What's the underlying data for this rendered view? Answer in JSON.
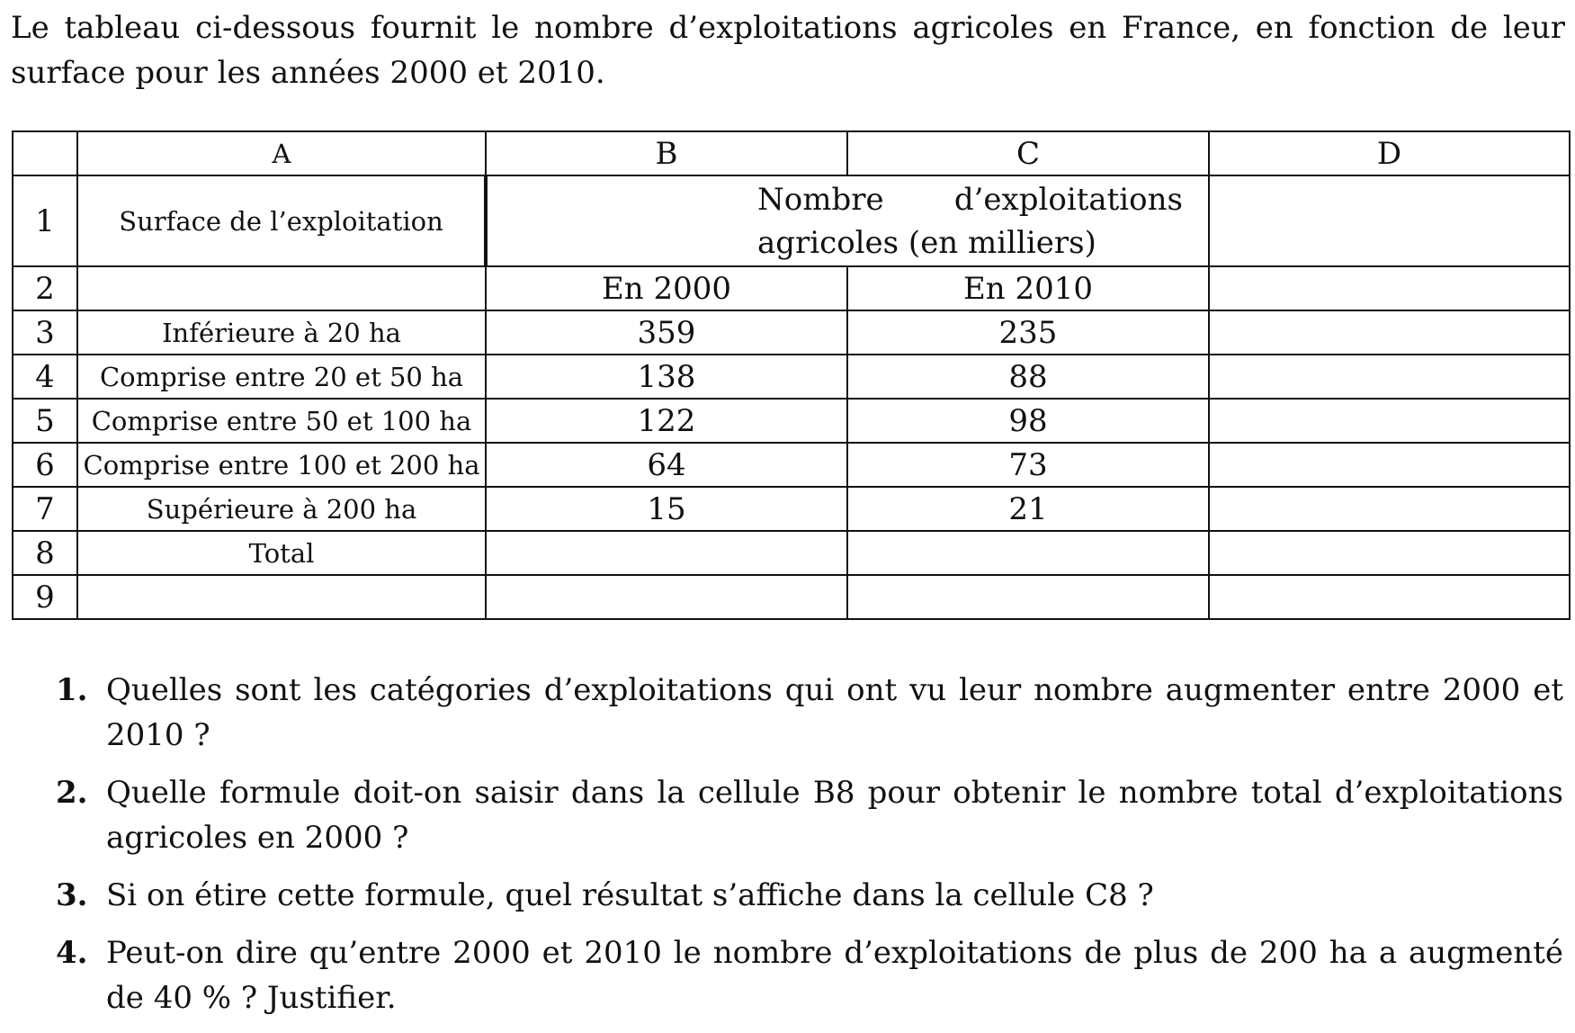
{
  "intro": "Le tableau ci-dessous fournit le nombre d’exploitations agricoles en France, en fonction de leur surface pour les années 2000 et 2010.",
  "table": {
    "column_headers": [
      "A",
      "B",
      "C",
      "D"
    ],
    "row1": {
      "num": "1",
      "a": "Surface de l’exploitation",
      "bc_line1": "Nombre d’exploitations",
      "bc_line2": "agricoles (en milliers)",
      "d": ""
    },
    "row2": {
      "num": "2",
      "a": "",
      "b": "En 2000",
      "c": "En 2010",
      "d": ""
    },
    "rows": [
      {
        "num": "3",
        "a": "Inférieure à 20 ha",
        "b": "359",
        "c": "235",
        "d": ""
      },
      {
        "num": "4",
        "a": "Comprise entre 20 et 50 ha",
        "b": "138",
        "c": "88",
        "d": ""
      },
      {
        "num": "5",
        "a": "Comprise entre 50 et 100 ha",
        "b": "122",
        "c": "98",
        "d": ""
      },
      {
        "num": "6",
        "a": "Comprise entre 100 et 200 ha",
        "b": "64",
        "c": "73",
        "d": ""
      },
      {
        "num": "7",
        "a": "Supérieure à 200 ha",
        "b": "15",
        "c": "21",
        "d": ""
      },
      {
        "num": "8",
        "a": "Total",
        "b": "",
        "c": "",
        "d": ""
      },
      {
        "num": "9",
        "a": "",
        "b": "",
        "c": "",
        "d": ""
      }
    ]
  },
  "questions": [
    {
      "num": "1.",
      "text": "Quelles sont les catégories d’exploitations qui ont vu leur nombre augmenter entre 2000 et 2010 ?"
    },
    {
      "num": "2.",
      "text": "Quelle formule doit-on saisir dans la cellule B8 pour obtenir le nombre total d’exploitations agricoles en 2000 ?"
    },
    {
      "num": "3.",
      "text": "Si on étire cette formule, quel résultat s’affiche dans la cellule C8 ?"
    },
    {
      "num": "4.",
      "text": "Peut-on dire qu’entre 2000 et 2010 le nombre d’exploitations de plus de 200 ha a augmenté de 40 % ? Justifier."
    }
  ]
}
